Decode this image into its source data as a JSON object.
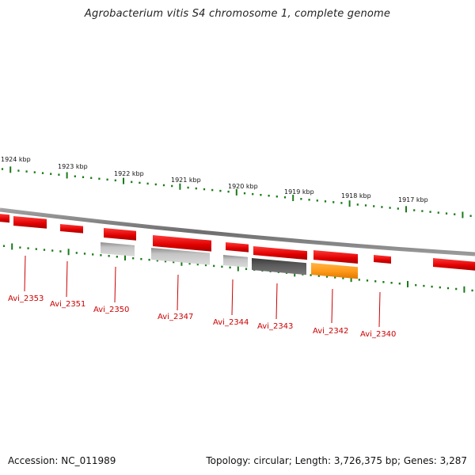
{
  "title": "Agrobacterium vitis S4 chromosome 1, complete genome",
  "footer": {
    "accession": "Accession: NC_011989",
    "summary": "Topology: circular; Length: 3,726,375 bp; Genes: 3,287"
  },
  "colors": {
    "gene_red": "#ee1111",
    "gene_light_gray": "#b8b8b8",
    "gene_dark_gray": "#555555",
    "gene_orange": "#ff9a1a",
    "backbone": "#808080",
    "tick_green": "#1a7a1a",
    "label_red": "#cc0000"
  },
  "scale_ticks": [
    "1924 kbp",
    "1923 kbp",
    "1922 kbp",
    "1921 kbp",
    "1920 kbp",
    "1919 kbp",
    "1918 kbp",
    "1917 kbp"
  ],
  "gene_labels": [
    "Avi_2353",
    "Avi_2351",
    "Avi_2350",
    "Avi_2347",
    "Avi_2344",
    "Avi_2343",
    "Avi_2342",
    "Avi_2340"
  ],
  "genes": [
    {
      "color": "red"
    },
    {
      "color": "red"
    },
    {
      "color": "red"
    },
    {
      "color": "red"
    },
    {
      "color": "red"
    },
    {
      "color": "red"
    },
    {
      "color": "red"
    },
    {
      "color": "red"
    },
    {
      "color": "red"
    },
    {
      "color": "red"
    },
    {
      "color": "light_gray"
    },
    {
      "color": "light_gray"
    },
    {
      "color": "light_gray"
    },
    {
      "color": "dark_gray"
    },
    {
      "color": "orange"
    }
  ]
}
